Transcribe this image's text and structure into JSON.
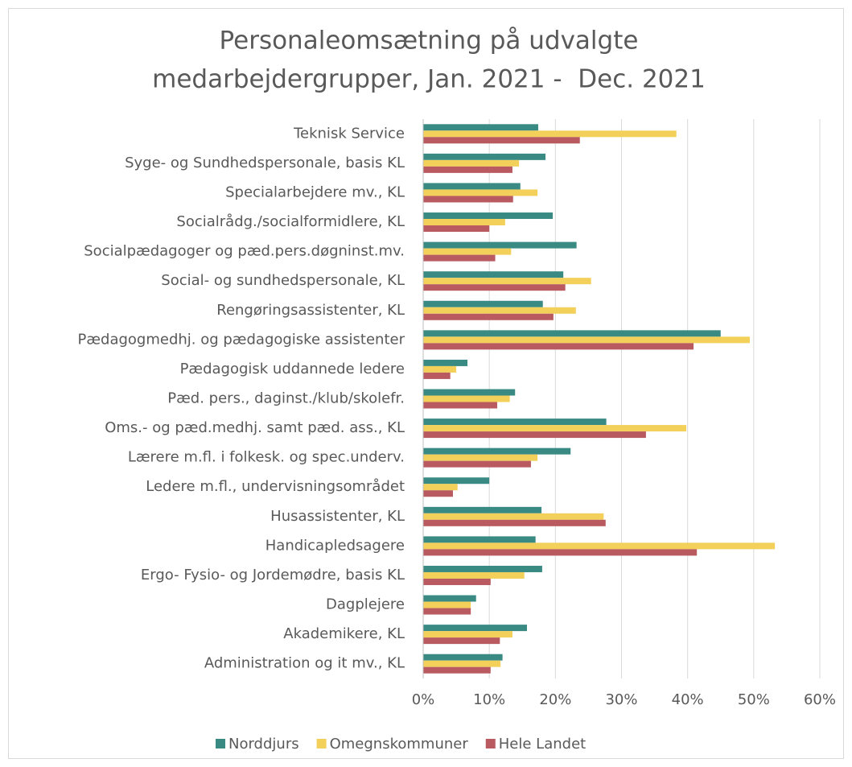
{
  "chart_data": {
    "type": "bar",
    "orientation": "horizontal",
    "title": [
      "Personaleomsætning på udvalgte",
      "medarbejdergrupper, Jan. 2021 -  Dec. 2021"
    ],
    "categories": [
      "Teknisk Service",
      "Syge- og Sundhedspersonale, basis KL",
      "Specialarbejdere mv., KL",
      "Socialrådg./socialformidlere, KL",
      "Socialpædagoger og pæd.pers.døgninst.mv.",
      "Social- og sundhedspersonale, KL",
      "Rengøringsassistenter, KL",
      "Pædagogmedhj. og pædagogiske assistenter",
      "Pædagogisk uddannede ledere",
      "Pæd. pers., daginst./klub/skolefr.",
      "Oms.- og pæd.medhj. samt pæd. ass., KL",
      "Lærere m.fl. i folkesk. og spec.underv.",
      "Ledere m.fl., undervisningsområdet",
      "Husassistenter, KL",
      "Handicapledsagere",
      "Ergo- Fysio- og Jordemødre, basis KL",
      "Dagplejere",
      "Akademikere, KL",
      "Administration og it mv., KL"
    ],
    "series": [
      {
        "name": "Norddjurs",
        "color": "#3a8a84",
        "values": [
          17.4,
          18.5,
          14.7,
          19.6,
          23.2,
          21.2,
          18.1,
          45.0,
          6.7,
          13.9,
          27.7,
          22.3,
          10.0,
          17.9,
          17.0,
          18.0,
          8.0,
          15.7,
          12.0
        ]
      },
      {
        "name": "Omegnskommuner",
        "color": "#f2d05a",
        "values": [
          38.3,
          14.5,
          17.3,
          12.4,
          13.3,
          25.4,
          23.1,
          49.4,
          5.0,
          13.1,
          39.8,
          17.3,
          5.2,
          27.3,
          53.2,
          15.3,
          7.2,
          13.5,
          11.7
        ]
      },
      {
        "name": "Hele Landet",
        "color": "#b85a5f",
        "values": [
          23.7,
          13.5,
          13.6,
          10.0,
          10.9,
          21.5,
          19.7,
          40.9,
          4.1,
          11.2,
          33.7,
          16.3,
          4.5,
          27.6,
          41.4,
          10.2,
          7.2,
          11.6,
          10.2
        ]
      }
    ],
    "xlim": [
      0,
      60
    ],
    "xticks": [
      {
        "value": 0,
        "label": "0%"
      },
      {
        "value": 10,
        "label": "10%"
      },
      {
        "value": 20,
        "label": "20%"
      },
      {
        "value": 30,
        "label": "30%"
      },
      {
        "value": 40,
        "label": "40%"
      },
      {
        "value": 50,
        "label": "50%"
      },
      {
        "value": 60,
        "label": "60%"
      }
    ],
    "grid": true,
    "legend": "bottom"
  }
}
